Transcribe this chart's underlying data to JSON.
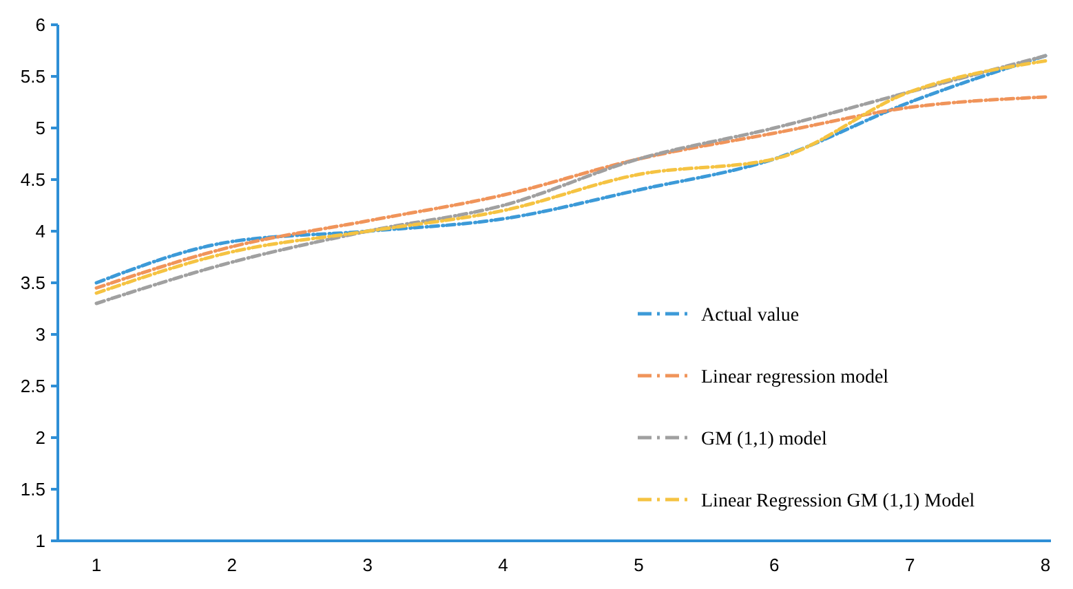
{
  "chart_data": {
    "type": "line",
    "categories": [
      "1",
      "2",
      "3",
      "4",
      "5",
      "6",
      "7",
      "8"
    ],
    "series": [
      {
        "name": "Actual value",
        "color": "#3c9ad8",
        "values": [
          3.5,
          3.9,
          4.0,
          4.12,
          4.4,
          4.7,
          5.25,
          5.7
        ]
      },
      {
        "name": "Linear regression model",
        "color": "#f0945a",
        "values": [
          3.45,
          3.85,
          4.1,
          4.35,
          4.7,
          4.95,
          5.2,
          5.3
        ]
      },
      {
        "name": "GM (1,1) model",
        "color": "#a0a0a0",
        "values": [
          3.3,
          3.7,
          4.0,
          4.25,
          4.7,
          5.0,
          5.35,
          5.7
        ]
      },
      {
        "name": "Linear Regression GM (1,1) Model",
        "color": "#f5c342",
        "values": [
          3.4,
          3.8,
          4.0,
          4.2,
          4.55,
          4.7,
          5.35,
          5.65
        ]
      }
    ],
    "ylim": [
      1,
      6
    ],
    "yticks": [
      1,
      1.5,
      2,
      2.5,
      3,
      3.5,
      4,
      4.5,
      5,
      5.5,
      6
    ],
    "grid": false,
    "legend": "bottom right",
    "line_style": "dashed",
    "marker": "none"
  }
}
